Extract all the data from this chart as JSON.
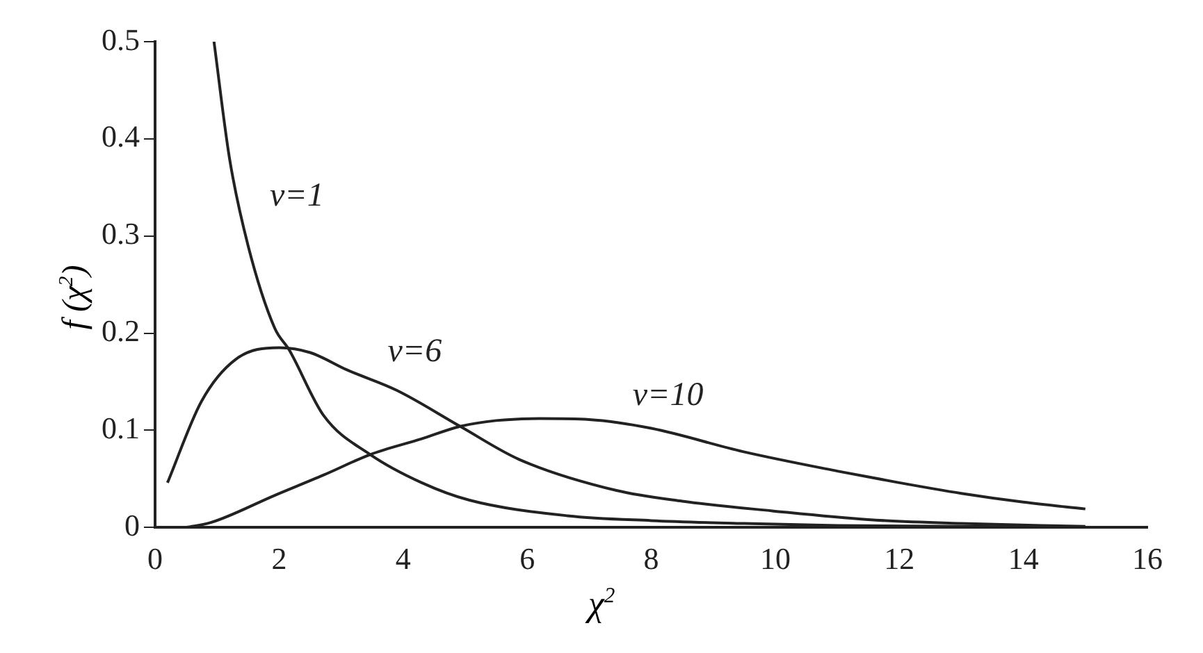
{
  "chart_data": {
    "type": "line",
    "xlabel": "χ$^{2}$",
    "ylabel": "f (χ$^{2}$)",
    "xlim": [
      0,
      16
    ],
    "xticks": [
      0,
      2,
      4,
      6,
      8,
      10,
      12,
      14,
      16
    ],
    "ylim": [
      0,
      0.5
    ],
    "yticks": [
      0,
      0.1,
      0.2,
      0.3,
      0.4,
      0.5
    ],
    "grid": false,
    "legend": false,
    "marker": "none",
    "line_style": "solid",
    "series": [
      {
        "name": "v=1",
        "color": "#222222",
        "x": [
          0.95,
          1.2,
          1.5,
          1.93,
          2.16,
          2.72,
          3.47,
          4.3,
          5.07,
          6.65,
          8,
          9.5,
          11,
          13,
          15
        ],
        "values": [
          0.5,
          0.38,
          0.29,
          0.205,
          0.183,
          0.115,
          0.075,
          0.046,
          0.028,
          0.012,
          0.007,
          0.004,
          0.002,
          0.001,
          0.0
        ]
      },
      {
        "name": "v=6",
        "color": "#222222",
        "x": [
          0.2,
          0.75,
          1.3,
          2.0,
          2.5,
          3.1,
          3.9,
          4.92,
          5.87,
          7.44,
          8.5,
          9.95,
          11.5,
          13,
          15
        ],
        "values": [
          0.046,
          0.13,
          0.173,
          0.185,
          0.18,
          0.162,
          0.141,
          0.104,
          0.07,
          0.038,
          0.027,
          0.017,
          0.008,
          0.004,
          0.001
        ]
      },
      {
        "name": "v=10",
        "color": "#222222",
        "x": [
          0.5,
          0.9,
          1.93,
          2.72,
          3.47,
          4.29,
          4.92,
          5.5,
          6.2,
          7,
          8,
          9.48,
          11,
          12,
          13,
          14,
          15
        ],
        "values": [
          0,
          0.005,
          0.033,
          0.054,
          0.075,
          0.091,
          0.104,
          0.11,
          0.112,
          0.111,
          0.102,
          0.078,
          0.058,
          0.046,
          0.035,
          0.026,
          0.019
        ]
      }
    ]
  }
}
